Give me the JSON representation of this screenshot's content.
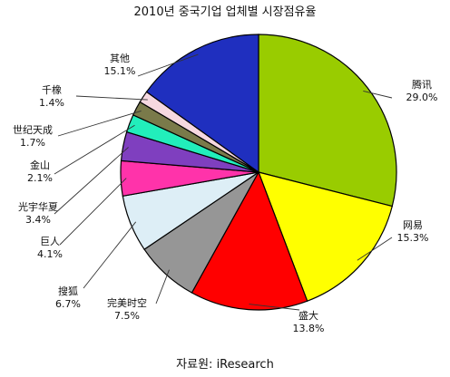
{
  "chart_data": {
    "type": "pie",
    "title": "2010년 중국기업 업체별 시장점유율",
    "source": "자료원: iResearch",
    "slices": [
      {
        "name": "腾讯",
        "value": 29.0,
        "value_label": "29.0%",
        "color": "#99cc00"
      },
      {
        "name": "网易",
        "value": 15.3,
        "value_label": "15.3%",
        "color": "#ffff00"
      },
      {
        "name": "盛大",
        "value": 13.8,
        "value_label": "13.8%",
        "color": "#ff0000"
      },
      {
        "name": "完美时空",
        "value": 7.5,
        "value_label": "7.5%",
        "color": "#969696"
      },
      {
        "name": "搜狐",
        "value": 6.7,
        "value_label": "6.7%",
        "color": "#ddeef6"
      },
      {
        "name": "巨人",
        "value": 4.1,
        "value_label": "4.1%",
        "color": "#ff33aa"
      },
      {
        "name": "光宇华夏",
        "value": 3.4,
        "value_label": "3.4%",
        "color": "#7f3fbf"
      },
      {
        "name": "金山",
        "value": 2.1,
        "value_label": "2.1%",
        "color": "#22eebb"
      },
      {
        "name": "世纪天成",
        "value": 1.7,
        "value_label": "1.7%",
        "color": "#7a7a4a"
      },
      {
        "name": "千橡",
        "value": 1.4,
        "value_label": "1.4%",
        "color": "#f6d8e0"
      },
      {
        "name": "其他",
        "value": 15.1,
        "value_label": "15.1%",
        "color": "#1f2fbf"
      }
    ]
  }
}
